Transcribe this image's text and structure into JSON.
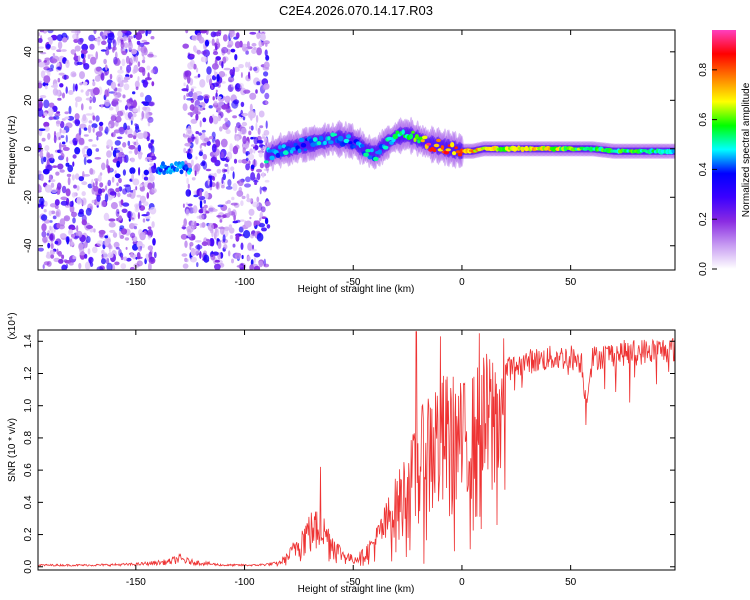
{
  "title": "C2E4.2026.070.14.17.R03",
  "chart_data": [
    {
      "type": "heatmap",
      "name": "spectrogram",
      "xlabel": "Height of straight line (km)",
      "ylabel": "Frequency (Hz)",
      "xlim": [
        -195,
        98
      ],
      "ylim": [
        -50,
        49
      ],
      "xticks": [
        -150,
        -100,
        -50,
        0,
        50
      ],
      "yticks": [
        -40,
        -20,
        0,
        20,
        40
      ],
      "colorbar": {
        "label": "Normalized spectral amplitude",
        "range": [
          0,
          0.96
        ],
        "ticks": [
          0.0,
          0.2,
          0.4,
          0.6,
          0.8
        ],
        "colormap": [
          "#ffffff",
          "#c79bf2",
          "#8a2be2",
          "#3b00ff",
          "#0000ff",
          "#00ffff",
          "#00ff00",
          "#ffff00",
          "#ff8000",
          "#ff0000",
          "#ff3fbf"
        ]
      },
      "noise_region_1": [
        -195,
        -141
      ],
      "noise_gap": [
        -141,
        -128
      ],
      "noise_region_2": [
        -128,
        -89
      ],
      "ridge_low_blob": {
        "x": [
          -140,
          -125
        ],
        "y_center": -8
      },
      "ridge": {
        "x": [
          -90,
          -85,
          -80,
          -75,
          -70,
          -65,
          -60,
          -55,
          -50,
          -45,
          -40,
          -35,
          -30,
          -25,
          -20,
          -15,
          -10,
          -5,
          0,
          5,
          10,
          20,
          30,
          40,
          50,
          60,
          70,
          80,
          90,
          98
        ],
        "y": [
          -3,
          -1,
          0,
          1,
          2,
          3,
          4,
          4,
          3,
          0,
          -2,
          2,
          5,
          6,
          4,
          2,
          1,
          0,
          -1,
          -1,
          0,
          0,
          0,
          0,
          0,
          0,
          -1,
          -1,
          -1,
          -1
        ],
        "amplitude": [
          0.5,
          0.45,
          0.5,
          0.45,
          0.45,
          0.5,
          0.5,
          0.5,
          0.45,
          0.5,
          0.5,
          0.5,
          0.55,
          0.55,
          0.65,
          0.9,
          0.85,
          0.85,
          0.8,
          0.8,
          0.75,
          0.7,
          0.75,
          0.7,
          0.65,
          0.6,
          0.6,
          0.6,
          0.55,
          0.5
        ]
      }
    },
    {
      "type": "line",
      "name": "snr",
      "xlabel": "Height of straight line (km)",
      "ylabel": "SNR (10 * v/v)",
      "multiplier": "(x10⁴)",
      "xlim": [
        -195,
        98
      ],
      "ylim": [
        -0.02,
        1.47
      ],
      "xticks": [
        -150,
        -100,
        -50,
        0,
        50
      ],
      "yticks": [
        0.0,
        0.2,
        0.4,
        0.6,
        0.8,
        1.0,
        1.2,
        1.4
      ],
      "color": "#ee3333",
      "envelope": {
        "x": [
          -195,
          -170,
          -150,
          -135,
          -130,
          -125,
          -110,
          -95,
          -85,
          -80,
          -75,
          -70,
          -65,
          -60,
          -55,
          -50,
          -45,
          -40,
          -35,
          -30,
          -25,
          -20,
          -15,
          -10,
          -5,
          0,
          5,
          10,
          15,
          20,
          25,
          30,
          40,
          50,
          55,
          57,
          60,
          70,
          80,
          90,
          98
        ],
        "y": [
          0.01,
          0.01,
          0.015,
          0.03,
          0.05,
          0.03,
          0.01,
          0.01,
          0.02,
          0.08,
          0.2,
          0.3,
          0.32,
          0.2,
          0.1,
          0.06,
          0.1,
          0.2,
          0.35,
          0.5,
          0.65,
          0.8,
          1.0,
          1.05,
          1.05,
          1.0,
          1.05,
          1.15,
          1.2,
          1.25,
          1.27,
          1.3,
          1.32,
          1.33,
          1.3,
          1.05,
          1.32,
          1.35,
          1.36,
          1.37,
          1.38
        ]
      },
      "peaks": [
        {
          "x": -65,
          "y": 0.62
        },
        {
          "x": -21,
          "y": 1.46
        },
        {
          "x": -10,
          "y": 1.43
        },
        {
          "x": 8,
          "y": 1.45
        },
        {
          "x": 57,
          "y": 0.88
        }
      ]
    }
  ]
}
